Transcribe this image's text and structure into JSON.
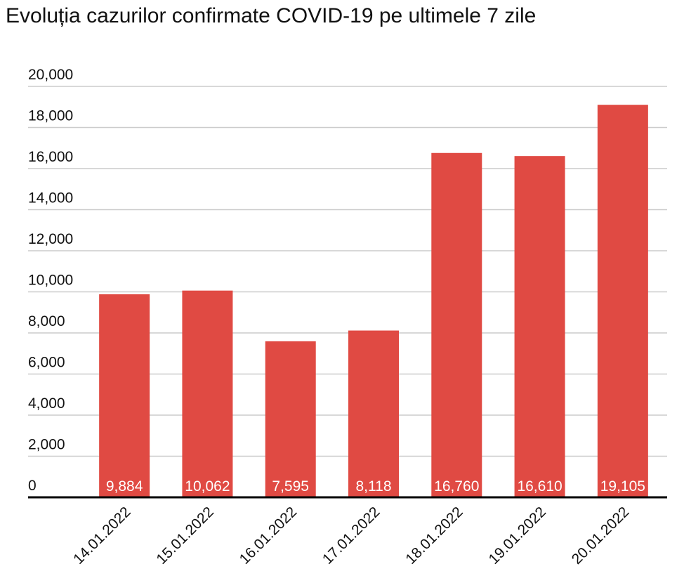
{
  "chart_data": {
    "type": "bar",
    "title": "Evoluția cazurilor confirmate COVID-19 pe ultimele 7 zile",
    "categories": [
      "14.01.2022",
      "15.01.2022",
      "16.01.2022",
      "17.01.2022",
      "18.01.2022",
      "19.01.2022",
      "20.01.2022"
    ],
    "values": [
      9884,
      10062,
      7595,
      8118,
      16760,
      16610,
      19105
    ],
    "value_labels": [
      "9,884",
      "10,062",
      "7,595",
      "8,118",
      "16,760",
      "16,610",
      "19,105"
    ],
    "color": "#e04a43",
    "ylim": [
      0,
      20000
    ],
    "yticks": [
      0,
      {
        "value": 2000,
        "label": "2,000"
      },
      {
        "value": 4000,
        "label": "4,000"
      },
      {
        "value": 6000,
        "label": "6,000"
      },
      {
        "value": 8000,
        "label": "8,000"
      },
      {
        "value": 10000,
        "label": "10,000"
      },
      {
        "value": 12000,
        "label": "12,000"
      },
      {
        "value": 14000,
        "label": "14,000"
      },
      {
        "value": 16000,
        "label": "16,000"
      },
      {
        "value": 18000,
        "label": "18,000"
      },
      {
        "value": 20000,
        "label": "20,000"
      }
    ],
    "grid": true
  }
}
